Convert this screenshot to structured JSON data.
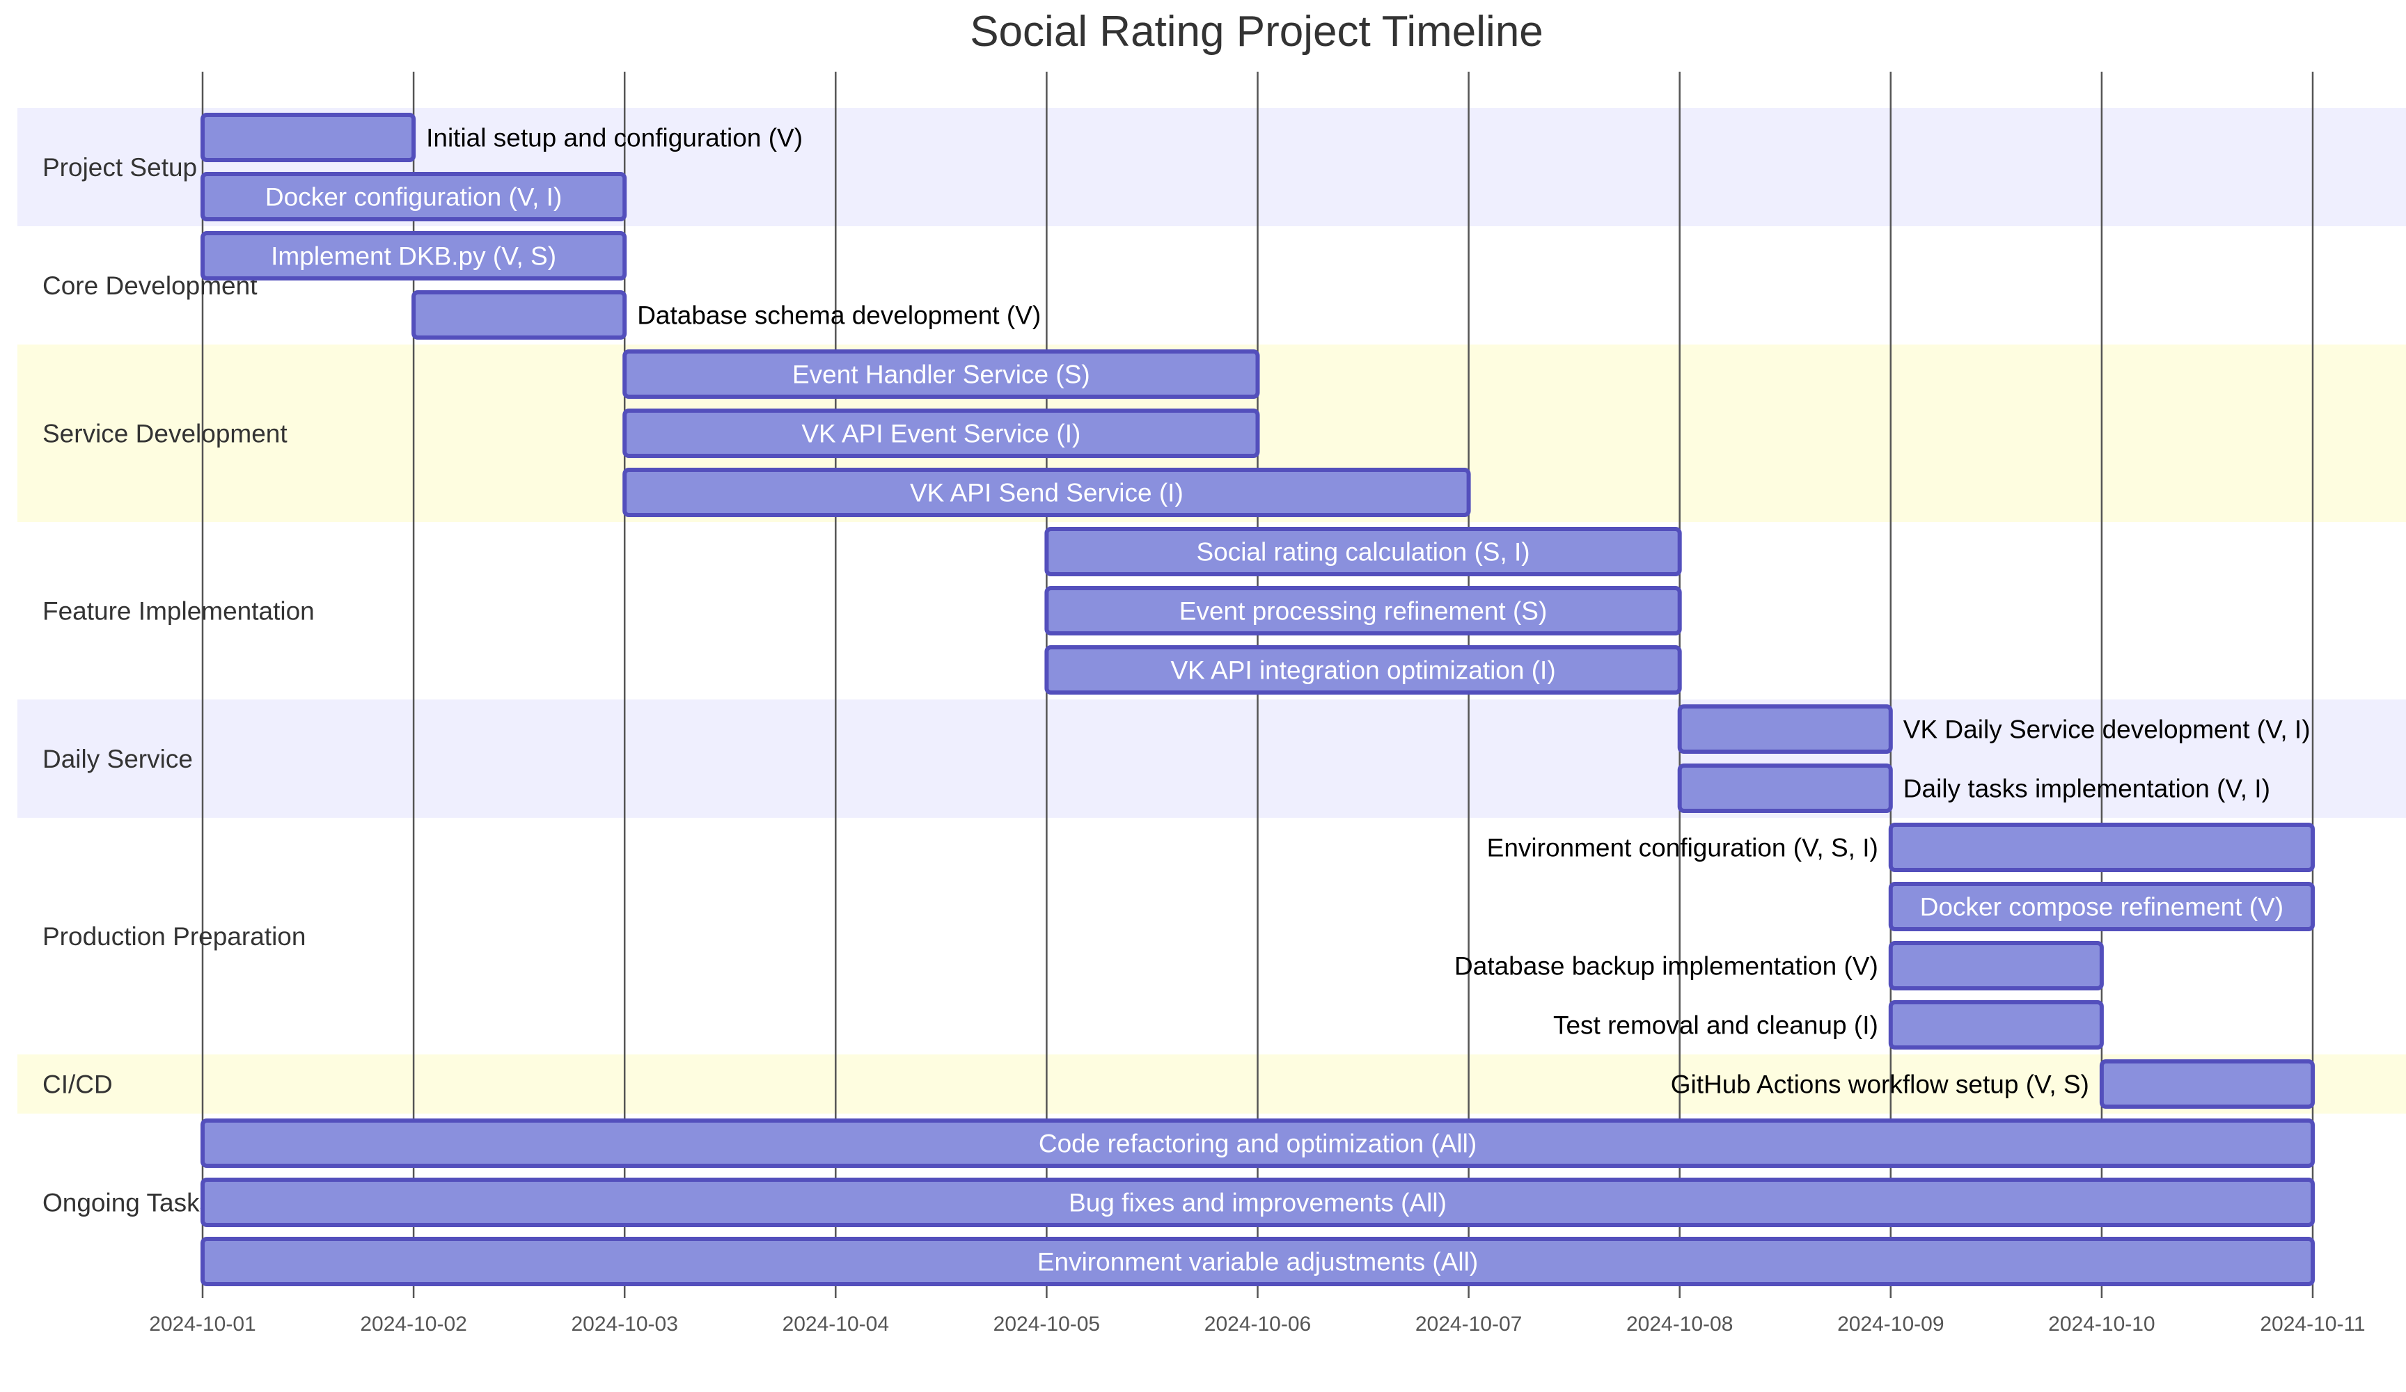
{
  "chart_data": {
    "type": "gantt",
    "title": "Social Rating Project Timeline",
    "x_range": [
      "2024-10-01",
      "2024-10-11"
    ],
    "x_ticks": [
      "2024-10-01",
      "2024-10-02",
      "2024-10-03",
      "2024-10-04",
      "2024-10-05",
      "2024-10-06",
      "2024-10-07",
      "2024-10-08",
      "2024-10-09",
      "2024-10-10",
      "2024-10-11"
    ],
    "grid": true,
    "colors": {
      "bar_fill": "#8a90dd",
      "bar_stroke": "#534fbc",
      "section_band_a": "#efeffe",
      "section_band_b": "#ffffff",
      "section_band_c": "#fefde0",
      "label_inside": "#ffffff",
      "label_outside": "#000000"
    },
    "sections": [
      {
        "name": "Project Setup",
        "band": "a",
        "tasks": [
          {
            "label": "Initial setup and configuration (V)",
            "start": "2024-10-01",
            "end": "2024-10-02"
          },
          {
            "label": "Docker configuration (V, I)",
            "start": "2024-10-01",
            "end": "2024-10-03"
          }
        ]
      },
      {
        "name": "Core Development",
        "band": "b",
        "tasks": [
          {
            "label": "Implement DKB.py (V, S)",
            "start": "2024-10-01",
            "end": "2024-10-03"
          },
          {
            "label": "Database schema development (V)",
            "start": "2024-10-02",
            "end": "2024-10-03"
          }
        ]
      },
      {
        "name": "Service Development",
        "band": "c",
        "tasks": [
          {
            "label": "Event Handler Service (S)",
            "start": "2024-10-03",
            "end": "2024-10-06"
          },
          {
            "label": "VK API Event Service (I)",
            "start": "2024-10-03",
            "end": "2024-10-06"
          },
          {
            "label": "VK API Send Service (I)",
            "start": "2024-10-03",
            "end": "2024-10-07"
          }
        ]
      },
      {
        "name": "Feature Implementation",
        "band": "b",
        "tasks": [
          {
            "label": "Social rating calculation (S, I)",
            "start": "2024-10-05",
            "end": "2024-10-08"
          },
          {
            "label": "Event processing refinement (S)",
            "start": "2024-10-05",
            "end": "2024-10-08"
          },
          {
            "label": "VK API integration optimization (I)",
            "start": "2024-10-05",
            "end": "2024-10-08"
          }
        ]
      },
      {
        "name": "Daily Service",
        "band": "a",
        "tasks": [
          {
            "label": "VK Daily Service development (V, I)",
            "start": "2024-10-08",
            "end": "2024-10-09"
          },
          {
            "label": "Daily tasks implementation (V, I)",
            "start": "2024-10-08",
            "end": "2024-10-09"
          }
        ]
      },
      {
        "name": "Production Preparation",
        "band": "b",
        "tasks": [
          {
            "label": "Environment configuration (V, S, I)",
            "start": "2024-10-09",
            "end": "2024-10-11"
          },
          {
            "label": "Docker compose refinement (V)",
            "start": "2024-10-09",
            "end": "2024-10-11"
          },
          {
            "label": "Database backup implementation (V)",
            "start": "2024-10-09",
            "end": "2024-10-10"
          },
          {
            "label": "Test removal and cleanup (I)",
            "start": "2024-10-09",
            "end": "2024-10-10"
          }
        ]
      },
      {
        "name": "CI/CD",
        "band": "c",
        "tasks": [
          {
            "label": "GitHub Actions workflow setup (V, S)",
            "start": "2024-10-10",
            "end": "2024-10-11"
          }
        ]
      },
      {
        "name": "Ongoing Tasks",
        "band": "b",
        "tasks": [
          {
            "label": "Code refactoring and optimization (All)",
            "start": "2024-10-01",
            "end": "2024-10-11"
          },
          {
            "label": "Bug fixes and improvements (All)",
            "start": "2024-10-01",
            "end": "2024-10-11"
          },
          {
            "label": "Environment variable adjustments (All)",
            "start": "2024-10-01",
            "end": "2024-10-11"
          }
        ]
      }
    ]
  }
}
